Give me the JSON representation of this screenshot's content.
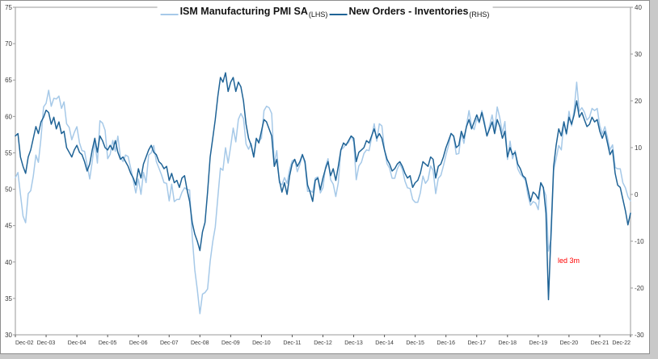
{
  "legend": {
    "series1_label": "ISM Manufacturing PMI SA",
    "series1_suffix": "(LHS)",
    "series2_label": "New Orders - Inventories",
    "series2_suffix": "(RHS)"
  },
  "colors": {
    "pmi_line": "#a6c9e8",
    "noi_line": "#1f6396",
    "annotation": "#ff0000",
    "frame": "#9a9a9a",
    "tick_text": "#3a3a3a"
  },
  "chart_data": {
    "type": "line",
    "title": "",
    "frequency": "monthly",
    "x_start": "Dec-02",
    "x_end": "Dec-22",
    "x_tick_labels": [
      "Dec-02",
      "Dec-03",
      "Dec-04",
      "Dec-05",
      "Dec-06",
      "Dec-07",
      "Dec-08",
      "Dec-09",
      "Dec-10",
      "Dec-11",
      "Dec-12",
      "Dec-13",
      "Dec-14",
      "Dec-15",
      "Dec-16",
      "Dec-17",
      "Dec-18",
      "Dec-19",
      "Dec-20",
      "Dec-21",
      "Dec-22"
    ],
    "left_axis": {
      "range": [
        30,
        75
      ],
      "ticks": [
        75,
        70,
        65,
        60,
        55,
        50,
        45,
        40,
        35,
        30
      ]
    },
    "right_axis": {
      "range": [
        -30,
        40
      ],
      "ticks": [
        40,
        30,
        20,
        10,
        0,
        -10,
        -20,
        -30
      ]
    },
    "legend_position": "top-center",
    "grid": false,
    "annotation": {
      "text": "led 3m",
      "color": "#ff0000",
      "near_x": "Oct-20"
    },
    "series": [
      {
        "name": "ISM Manufacturing PMI SA (LHS)",
        "axis": "left",
        "color": "#a6c9e8",
        "values": [
          51.6,
          52.3,
          49.3,
          46.3,
          45.4,
          49.4,
          49.8,
          51.8,
          54.7,
          53.7,
          57.0,
          61.3,
          61.8,
          63.6,
          61.4,
          62.5,
          62.4,
          62.8,
          61.1,
          62.0,
          59.0,
          58.5,
          56.8,
          57.8,
          58.6,
          56.4,
          55.3,
          55.2,
          53.3,
          51.4,
          53.8,
          56.6,
          53.6,
          59.4,
          59.1,
          58.1,
          54.2,
          54.8,
          56.7,
          55.2,
          57.3,
          54.4,
          53.8,
          54.7,
          54.5,
          52.9,
          51.2,
          49.5,
          51.4,
          49.3,
          52.3,
          50.9,
          54.7,
          55.0,
          56.0,
          53.8,
          52.9,
          52.0,
          50.9,
          50.8,
          48.4,
          50.7,
          48.3,
          48.6,
          48.6,
          49.6,
          50.2,
          50.0,
          49.9,
          43.5,
          38.9,
          36.2,
          32.9,
          35.6,
          35.8,
          36.3,
          40.1,
          42.8,
          44.8,
          48.9,
          52.9,
          52.6,
          55.7,
          53.6,
          55.9,
          58.4,
          56.5,
          59.6,
          60.4,
          59.7,
          56.2,
          55.5,
          56.3,
          54.4,
          56.9,
          56.6,
          57.0,
          60.8,
          61.4,
          61.2,
          60.4,
          53.5,
          55.3,
          50.9,
          50.6,
          51.6,
          50.8,
          52.7,
          53.9,
          54.1,
          52.4,
          53.4,
          54.8,
          53.5,
          49.7,
          49.8,
          49.6,
          51.5,
          51.7,
          49.5,
          50.2,
          53.1,
          54.2,
          51.3,
          50.7,
          49.0,
          50.9,
          55.4,
          55.7,
          56.2,
          56.4,
          57.3,
          56.5,
          51.3,
          53.2,
          53.7,
          54.9,
          55.4,
          55.3,
          57.1,
          59.0,
          56.6,
          59.0,
          58.7,
          55.5,
          53.5,
          52.9,
          51.5,
          51.5,
          52.8,
          53.5,
          52.7,
          51.1,
          50.2,
          50.1,
          48.6,
          48.2,
          48.2,
          49.5,
          51.8,
          50.8,
          51.3,
          53.2,
          52.6,
          49.4,
          51.5,
          51.9,
          53.2,
          54.7,
          56.0,
          57.7,
          57.2,
          54.8,
          54.9,
          57.8,
          56.3,
          58.8,
          60.8,
          58.7,
          58.2,
          59.7,
          59.1,
          60.8,
          59.3,
          57.3,
          58.7,
          60.2,
          58.1,
          61.3,
          59.8,
          57.7,
          59.3,
          54.1,
          56.6,
          54.2,
          55.3,
          52.8,
          52.1,
          51.7,
          51.2,
          49.1,
          47.8,
          48.3,
          48.1,
          47.2,
          50.9,
          50.1,
          49.1,
          41.5,
          43.1,
          52.6,
          54.2,
          56.0,
          55.4,
          59.3,
          57.5,
          60.7,
          58.7,
          60.8,
          64.7,
          60.7,
          61.2,
          60.6,
          59.5,
          59.9,
          61.1,
          60.8,
          61.1,
          58.7,
          57.6,
          58.6,
          57.1,
          55.4,
          56.1,
          53.0,
          52.8,
          52.8,
          50.9,
          50.2,
          49.0,
          48.4
        ]
      },
      {
        "name": "New Orders - Inventories (RHS)",
        "axis": "right",
        "color": "#1f6396",
        "values": [
          12.5,
          13.0,
          8.0,
          6.0,
          4.5,
          8.0,
          9.5,
          12.0,
          14.5,
          13.0,
          15.5,
          16.5,
          18.0,
          17.5,
          15.0,
          16.5,
          14.0,
          15.5,
          13.0,
          13.5,
          10.0,
          9.0,
          8.0,
          9.5,
          10.5,
          9.0,
          8.5,
          7.0,
          5.0,
          6.5,
          9.5,
          12.0,
          9.0,
          12.5,
          11.5,
          10.0,
          9.5,
          10.5,
          9.5,
          11.5,
          9.0,
          7.5,
          8.0,
          7.0,
          6.0,
          4.5,
          3.5,
          2.0,
          5.5,
          3.5,
          6.5,
          8.0,
          9.5,
          10.5,
          9.0,
          8.5,
          7.0,
          6.5,
          5.5,
          6.0,
          3.0,
          4.5,
          2.5,
          3.0,
          1.5,
          3.5,
          4.0,
          1.0,
          -1.5,
          -6.0,
          -8.5,
          -10.0,
          -12.0,
          -8.0,
          -6.0,
          0.5,
          8.0,
          12.0,
          16.0,
          21.0,
          25.0,
          24.0,
          26.0,
          22.0,
          24.0,
          25.0,
          22.0,
          24.0,
          23.0,
          20.0,
          15.0,
          12.0,
          10.5,
          8.0,
          12.0,
          11.0,
          13.5,
          16.0,
          15.5,
          14.0,
          12.5,
          6.0,
          7.5,
          3.0,
          0.5,
          2.5,
          0.0,
          4.0,
          6.5,
          7.5,
          6.0,
          7.0,
          8.5,
          7.0,
          2.0,
          0.5,
          -1.5,
          3.0,
          3.5,
          1.0,
          3.5,
          5.5,
          7.0,
          4.0,
          5.5,
          3.0,
          6.0,
          9.5,
          11.0,
          10.5,
          11.5,
          12.5,
          12.0,
          7.0,
          9.0,
          9.5,
          10.0,
          11.5,
          11.0,
          12.5,
          14.0,
          12.0,
          13.0,
          12.0,
          9.5,
          7.5,
          6.5,
          5.0,
          5.5,
          6.5,
          7.0,
          6.0,
          4.5,
          3.5,
          4.0,
          1.5,
          2.5,
          3.0,
          4.5,
          7.0,
          6.5,
          6.0,
          8.0,
          7.5,
          3.5,
          6.0,
          6.5,
          8.0,
          10.0,
          11.5,
          13.0,
          12.5,
          10.0,
          10.5,
          13.5,
          12.0,
          14.5,
          16.0,
          14.0,
          15.5,
          17.0,
          15.5,
          17.5,
          15.0,
          12.5,
          14.0,
          15.5,
          13.0,
          16.0,
          14.5,
          12.0,
          13.5,
          8.0,
          10.0,
          8.5,
          9.0,
          6.5,
          5.5,
          4.0,
          3.5,
          1.0,
          -1.5,
          0.5,
          0.0,
          -1.0,
          2.5,
          1.5,
          -4.0,
          -22.5,
          -8.0,
          6.0,
          10.5,
          14.0,
          12.5,
          15.5,
          13.0,
          16.5,
          15.0,
          17.0,
          20.0,
          16.5,
          17.5,
          16.0,
          14.5,
          15.0,
          16.5,
          15.5,
          16.0,
          13.5,
          12.0,
          13.5,
          11.0,
          8.5,
          9.5,
          4.5,
          2.0,
          1.5,
          -1.0,
          -3.5,
          -6.5,
          -4.0
        ]
      }
    ]
  }
}
